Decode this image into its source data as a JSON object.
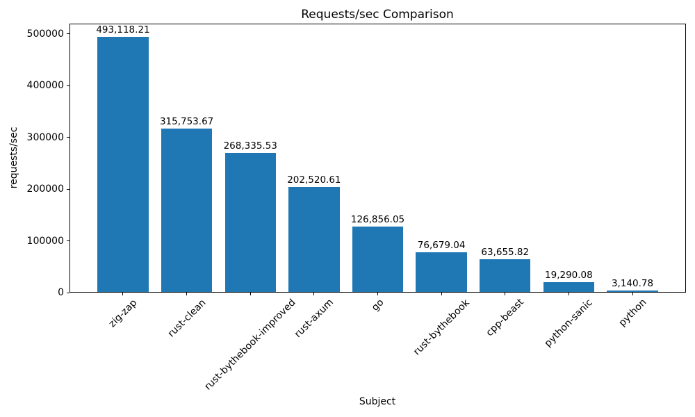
{
  "chart_data": {
    "type": "bar",
    "title": "Requests/sec Comparison",
    "xlabel": "Subject",
    "ylabel": "requests/sec",
    "categories": [
      "zig-zap",
      "rust-clean",
      "rust-bythebook-improved",
      "rust-axum",
      "go",
      "rust-bythebook",
      "cpp-beast",
      "python-sanic",
      "python"
    ],
    "values": [
      493118.21,
      315753.67,
      268335.53,
      202520.61,
      126856.05,
      76679.04,
      63655.82,
      19290.08,
      3140.78
    ],
    "value_labels": [
      "493,118.21",
      "315,753.67",
      "268,335.53",
      "202,520.61",
      "126,856.05",
      "76,679.04",
      "63,655.82",
      "19,290.08",
      "3,140.78"
    ],
    "yticks": [
      0,
      100000,
      200000,
      300000,
      400000,
      500000
    ],
    "ytick_labels": [
      "0",
      "100000",
      "200000",
      "300000",
      "400000",
      "500000"
    ],
    "ylim": [
      0,
      520000
    ],
    "bar_color": "#1f77b4",
    "bar_width_fraction": 0.8,
    "xtick_rotation_deg": 45,
    "grid": false,
    "legend": null
  }
}
